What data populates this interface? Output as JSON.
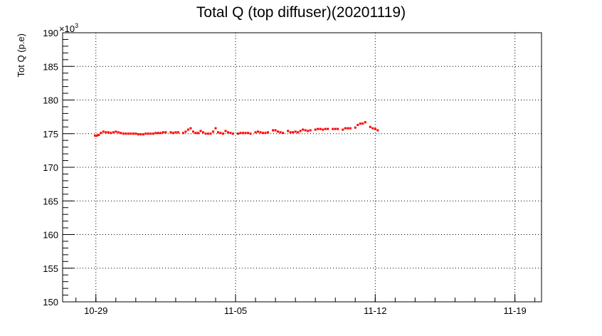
{
  "chart_data": {
    "type": "scatter",
    "title": "Total Q (top diffuser)(20201119)",
    "ylabel": "Tot Q (p.e)",
    "y_multiplier": "×10",
    "y_multiplier_exp": "3",
    "ylim": [
      150,
      190
    ],
    "yticks": [
      150,
      155,
      160,
      165,
      170,
      175,
      180,
      185,
      190
    ],
    "xlim": [
      "2020-10-27T08:00",
      "2020-11-20T08:00"
    ],
    "xticks": [
      {
        "label": "10-29",
        "date": "2020-10-29"
      },
      {
        "label": "11-05",
        "date": "2020-11-05"
      },
      {
        "label": "11-12",
        "date": "2020-11-12"
      },
      {
        "label": "11-19",
        "date": "2020-11-19"
      }
    ],
    "grid": true,
    "marker_color": "#ff0000",
    "series": [
      {
        "points": [
          [
            "2020-10-28T23:00",
            174.7
          ],
          [
            "2020-10-29T01:00",
            174.7
          ],
          [
            "2020-10-29T03:30",
            174.8
          ],
          [
            "2020-10-29T06:00",
            175.1
          ],
          [
            "2020-10-29T09:00",
            175.3
          ],
          [
            "2020-10-29T12:00",
            175.2
          ],
          [
            "2020-10-29T15:00",
            175.2
          ],
          [
            "2020-10-29T18:00",
            175.1
          ],
          [
            "2020-10-29T21:00",
            175.2
          ],
          [
            "2020-10-30T00:00",
            175.3
          ],
          [
            "2020-10-30T03:00",
            175.2
          ],
          [
            "2020-10-30T06:00",
            175.1
          ],
          [
            "2020-10-30T09:00",
            175.0
          ],
          [
            "2020-10-30T12:00",
            175.0
          ],
          [
            "2020-10-30T15:00",
            175.0
          ],
          [
            "2020-10-30T18:00",
            175.0
          ],
          [
            "2020-10-30T21:00",
            175.0
          ],
          [
            "2020-10-31T00:00",
            175.0
          ],
          [
            "2020-10-31T03:00",
            174.9
          ],
          [
            "2020-10-31T06:00",
            174.9
          ],
          [
            "2020-10-31T09:00",
            174.9
          ],
          [
            "2020-10-31T12:00",
            175.0
          ],
          [
            "2020-10-31T15:00",
            175.0
          ],
          [
            "2020-10-31T18:00",
            175.0
          ],
          [
            "2020-10-31T21:00",
            175.0
          ],
          [
            "2020-11-01T00:00",
            175.1
          ],
          [
            "2020-11-01T03:00",
            175.1
          ],
          [
            "2020-11-01T06:00",
            175.1
          ],
          [
            "2020-11-01T09:00",
            175.2
          ],
          [
            "2020-11-01T12:00",
            175.2
          ],
          [
            "2020-11-01T18:00",
            175.2
          ],
          [
            "2020-11-01T21:00",
            175.1
          ],
          [
            "2020-11-02T00:00",
            175.2
          ],
          [
            "2020-11-02T03:00",
            175.2
          ],
          [
            "2020-11-02T09:00",
            175.1
          ],
          [
            "2020-11-02T12:00",
            175.3
          ],
          [
            "2020-11-02T15:00",
            175.6
          ],
          [
            "2020-11-02T18:00",
            175.8
          ],
          [
            "2020-11-02T21:00",
            175.3
          ],
          [
            "2020-11-03T00:00",
            175.1
          ],
          [
            "2020-11-03T03:00",
            175.1
          ],
          [
            "2020-11-03T06:00",
            175.4
          ],
          [
            "2020-11-03T09:00",
            175.2
          ],
          [
            "2020-11-03T12:00",
            175.0
          ],
          [
            "2020-11-03T15:00",
            175.0
          ],
          [
            "2020-11-03T18:00",
            175.0
          ],
          [
            "2020-11-03T21:00",
            175.3
          ],
          [
            "2020-11-04T00:00",
            175.8
          ],
          [
            "2020-11-04T03:00",
            175.2
          ],
          [
            "2020-11-04T06:00",
            175.1
          ],
          [
            "2020-11-04T09:00",
            175.0
          ],
          [
            "2020-11-04T12:00",
            175.4
          ],
          [
            "2020-11-04T15:00",
            175.2
          ],
          [
            "2020-11-04T18:00",
            175.1
          ],
          [
            "2020-11-04T21:00",
            175.0
          ],
          [
            "2020-11-05T03:00",
            175.0
          ],
          [
            "2020-11-05T06:00",
            175.1
          ],
          [
            "2020-11-05T09:00",
            175.1
          ],
          [
            "2020-11-05T12:00",
            175.1
          ],
          [
            "2020-11-05T15:00",
            175.1
          ],
          [
            "2020-11-05T18:00",
            175.0
          ],
          [
            "2020-11-06T00:00",
            175.2
          ],
          [
            "2020-11-06T03:00",
            175.3
          ],
          [
            "2020-11-06T06:00",
            175.2
          ],
          [
            "2020-11-06T09:00",
            175.1
          ],
          [
            "2020-11-06T12:00",
            175.1
          ],
          [
            "2020-11-06T15:00",
            175.2
          ],
          [
            "2020-11-06T21:00",
            175.5
          ],
          [
            "2020-11-07T00:00",
            175.5
          ],
          [
            "2020-11-07T03:00",
            175.3
          ],
          [
            "2020-11-07T06:00",
            175.2
          ],
          [
            "2020-11-07T09:00",
            175.1
          ],
          [
            "2020-11-07T15:00",
            175.4
          ],
          [
            "2020-11-07T18:00",
            175.2
          ],
          [
            "2020-11-07T21:00",
            175.2
          ],
          [
            "2020-11-08T00:00",
            175.3
          ],
          [
            "2020-11-08T03:00",
            175.2
          ],
          [
            "2020-11-08T06:00",
            175.4
          ],
          [
            "2020-11-08T09:00",
            175.6
          ],
          [
            "2020-11-08T12:00",
            175.5
          ],
          [
            "2020-11-08T15:00",
            175.4
          ],
          [
            "2020-11-08T18:00",
            175.5
          ],
          [
            "2020-11-09T00:00",
            175.6
          ],
          [
            "2020-11-09T03:00",
            175.7
          ],
          [
            "2020-11-09T06:00",
            175.7
          ],
          [
            "2020-11-09T09:00",
            175.6
          ],
          [
            "2020-11-09T12:00",
            175.7
          ],
          [
            "2020-11-09T15:00",
            175.7
          ],
          [
            "2020-11-09T21:00",
            175.7
          ],
          [
            "2020-11-10T00:00",
            175.7
          ],
          [
            "2020-11-10T03:00",
            175.7
          ],
          [
            "2020-11-10T09:00",
            175.6
          ],
          [
            "2020-11-10T12:00",
            175.8
          ],
          [
            "2020-11-10T15:00",
            175.8
          ],
          [
            "2020-11-10T18:00",
            175.8
          ],
          [
            "2020-11-11T00:00",
            175.9
          ],
          [
            "2020-11-11T03:00",
            176.3
          ],
          [
            "2020-11-11T06:00",
            176.5
          ],
          [
            "2020-11-11T09:00",
            176.5
          ],
          [
            "2020-11-11T12:00",
            176.7
          ],
          [
            "2020-11-11T18:00",
            176.0
          ],
          [
            "2020-11-11T21:00",
            175.8
          ],
          [
            "2020-11-12T00:00",
            175.7
          ],
          [
            "2020-11-12T03:00",
            175.5
          ]
        ]
      }
    ]
  }
}
